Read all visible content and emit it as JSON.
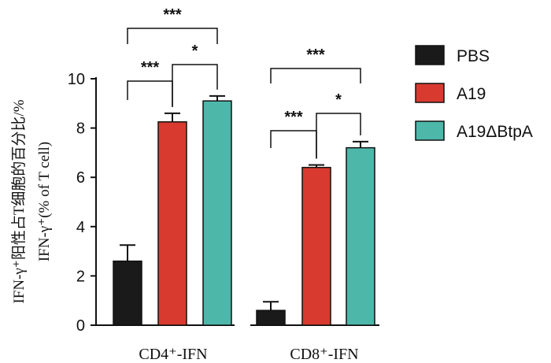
{
  "chart_data": {
    "type": "bar",
    "categories": [
      "CD4⁺-IFN",
      "CD8⁺-IFN"
    ],
    "series": [
      {
        "name": "PBS",
        "values": [
          2.6,
          0.6
        ],
        "errors": [
          0.65,
          0.35
        ],
        "color": "#1a1a1a"
      },
      {
        "name": "A19",
        "values": [
          8.25,
          6.4
        ],
        "errors": [
          0.35,
          0.1
        ],
        "color": "#d93a30"
      },
      {
        "name": "A19ΔBtpA",
        "values": [
          9.1,
          7.2
        ],
        "errors": [
          0.2,
          0.25
        ],
        "color": "#4db8aa"
      }
    ],
    "ylabel_cn": "IFN-γ⁺阳性占T细胞的百分比/%",
    "ylabel_en": "IFN-γ⁺(% of T cell)",
    "ylim": [
      0,
      10
    ],
    "yticks": [
      0,
      2,
      4,
      6,
      8,
      10
    ],
    "legend_position": "right",
    "significance": [
      {
        "group": 0,
        "from": 0,
        "to": 1,
        "label": "***",
        "level": 1
      },
      {
        "group": 0,
        "from": 1,
        "to": 2,
        "label": "*",
        "level": 1
      },
      {
        "group": 0,
        "from": 0,
        "to": 2,
        "label": "***",
        "level": 2
      },
      {
        "group": 1,
        "from": 0,
        "to": 1,
        "label": "***",
        "level": 1
      },
      {
        "group": 1,
        "from": 1,
        "to": 2,
        "label": "*",
        "level": 1
      },
      {
        "group": 1,
        "from": 0,
        "to": 2,
        "label": "***",
        "level": 2
      }
    ]
  }
}
